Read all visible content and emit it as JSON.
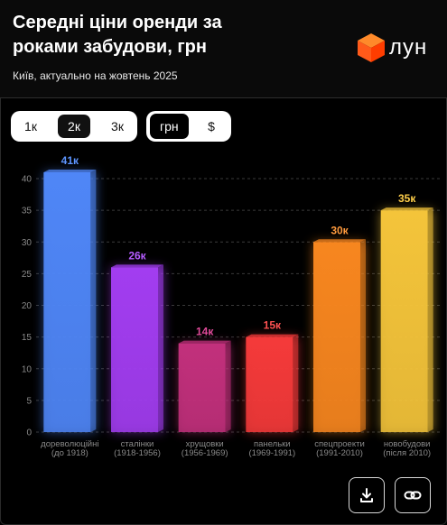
{
  "header": {
    "title": "Середні ціни оренди за роками забудови, грн",
    "subtitle": "Київ, актуально на жовтень 2025",
    "logo_text": "лун"
  },
  "controls": {
    "scale": [
      {
        "label": "1к",
        "active": false
      },
      {
        "label": "2к",
        "active": true
      },
      {
        "label": "3к",
        "active": false
      }
    ],
    "currency": [
      {
        "label": "грн",
        "active": true
      },
      {
        "label": "$",
        "active": false
      }
    ]
  },
  "chart_data": {
    "type": "bar",
    "categories": [
      [
        "дореволюційні",
        "(до 1918)"
      ],
      [
        "сталінки",
        "(1918-1956)"
      ],
      [
        "хрущовки",
        "(1956-1969)"
      ],
      [
        "панельки",
        "(1969-1991)"
      ],
      [
        "спецпроекти",
        "(1991-2010)"
      ],
      [
        "новобудови",
        "(після 2010)"
      ]
    ],
    "values": [
      41,
      26,
      14,
      15,
      30,
      35
    ],
    "value_labels": [
      "41к",
      "26к",
      "14к",
      "15к",
      "30к",
      "35к"
    ],
    "colors": [
      "#4f86f7",
      "#a23df0",
      "#c2307c",
      "#f53a3a",
      "#f7861f",
      "#f4c43a"
    ],
    "label_colors": [
      "#5d95ff",
      "#b55cff",
      "#e04a9a",
      "#ff5252",
      "#ff9a3d",
      "#ffcf4a"
    ],
    "yticks": [
      0,
      5,
      10,
      15,
      20,
      25,
      30,
      35,
      40
    ],
    "ylim": [
      0,
      40
    ],
    "grid": true
  },
  "actions": {
    "download_icon": "download-icon",
    "link_icon": "link-icon"
  }
}
